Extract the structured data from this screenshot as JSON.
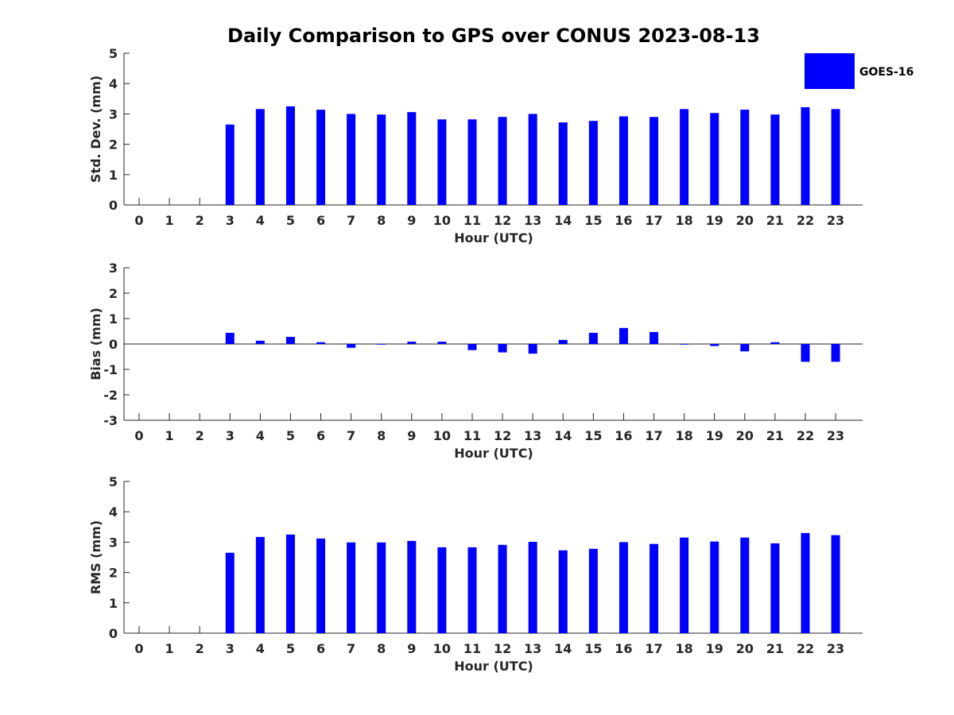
{
  "colors": {
    "bar": "#0000ff",
    "axis": "#262626",
    "text": "#262626"
  },
  "legend": {
    "label": "GOES-16",
    "placement": "top-right"
  },
  "chart_data": {
    "title": "Daily Comparison to GPS over CONUS 2023-08-13",
    "type": "bar",
    "categories": [
      "0",
      "1",
      "2",
      "3",
      "4",
      "5",
      "6",
      "7",
      "8",
      "9",
      "10",
      "11",
      "12",
      "13",
      "14",
      "15",
      "16",
      "17",
      "18",
      "19",
      "20",
      "21",
      "22",
      "23"
    ],
    "panels": [
      {
        "name": "std-dev",
        "ylabel": "Std. Dev. (mm)",
        "xlabel": "Hour (UTC)",
        "ylim": [
          0,
          5
        ],
        "yticks": [
          "0",
          "1",
          "2",
          "3",
          "4",
          "5"
        ],
        "series": [
          {
            "name": "GOES-16",
            "values": [
              null,
              null,
              null,
              2.65,
              3.16,
              3.25,
              3.14,
              3.0,
              2.98,
              3.06,
              2.82,
              2.82,
              2.9,
              3.0,
              2.72,
              2.77,
              2.92,
              2.9,
              3.16,
              3.03,
              3.14,
              2.98,
              3.22,
              3.16
            ]
          }
        ]
      },
      {
        "name": "bias",
        "ylabel": "Bias (mm)",
        "xlabel": "Hour (UTC)",
        "ylim": [
          -3,
          3
        ],
        "yticks": [
          "-3",
          "-2",
          "-1",
          "0",
          "1",
          "2",
          "3"
        ],
        "series": [
          {
            "name": "GOES-16",
            "values": [
              null,
              null,
              null,
              0.44,
              0.13,
              0.28,
              0.07,
              -0.15,
              -0.02,
              0.09,
              0.09,
              -0.24,
              -0.33,
              -0.38,
              0.16,
              0.44,
              0.63,
              0.47,
              -0.02,
              -0.08,
              -0.29,
              0.07,
              -0.7,
              -0.7
            ]
          }
        ]
      },
      {
        "name": "rms",
        "ylabel": "RMS (mm)",
        "xlabel": "Hour (UTC)",
        "ylim": [
          0,
          5
        ],
        "yticks": [
          "0",
          "1",
          "2",
          "3",
          "4",
          "5"
        ],
        "series": [
          {
            "name": "GOES-16",
            "values": [
              null,
              null,
              null,
              2.65,
              3.17,
              3.25,
              3.12,
              2.99,
              2.99,
              3.04,
              2.83,
              2.83,
              2.91,
              3.01,
              2.73,
              2.78,
              3.0,
              2.94,
              3.15,
              3.02,
              3.15,
              2.96,
              3.3,
              3.23
            ]
          }
        ]
      }
    ]
  }
}
